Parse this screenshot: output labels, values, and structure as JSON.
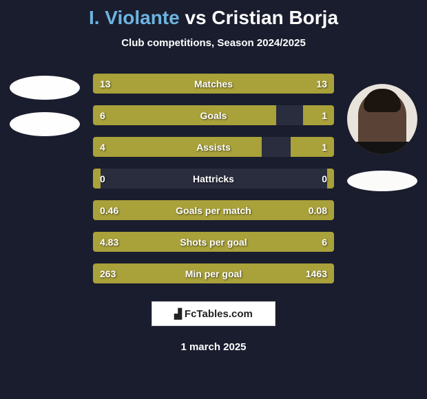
{
  "title": {
    "player1": "I. Violante",
    "vs": "vs",
    "player2": "Cristian Borja",
    "player1_color": "#6db4e0",
    "vs_color": "#ffffff",
    "player2_color": "#ffffff",
    "fontsize": 28
  },
  "subtitle": "Club competitions, Season 2024/2025",
  "background_color": "#1a1d2e",
  "bars": {
    "bar_fill_color": "#a9a13a",
    "bar_empty_color": "#2a2d3e",
    "text_color": "#ffffff",
    "label_fontsize": 14,
    "value_fontsize": 14,
    "rows": [
      {
        "label": "Matches",
        "left_value": "13",
        "right_value": "13",
        "left_width_pct": 50,
        "right_width_pct": 50
      },
      {
        "label": "Goals",
        "left_value": "6",
        "right_value": "1",
        "left_width_pct": 76,
        "right_width_pct": 13
      },
      {
        "label": "Assists",
        "left_value": "4",
        "right_value": "1",
        "left_width_pct": 70,
        "right_width_pct": 18
      },
      {
        "label": "Hattricks",
        "left_value": "0",
        "right_value": "0",
        "left_width_pct": 3,
        "right_width_pct": 3
      },
      {
        "label": "Goals per match",
        "left_value": "0.46",
        "right_value": "0.08",
        "left_width_pct": 100,
        "right_width_pct": 0
      },
      {
        "label": "Shots per goal",
        "left_value": "4.83",
        "right_value": "6",
        "left_width_pct": 100,
        "right_width_pct": 0
      },
      {
        "label": "Min per goal",
        "left_value": "263",
        "right_value": "1463",
        "left_width_pct": 100,
        "right_width_pct": 0
      }
    ]
  },
  "logo": {
    "text": "FcTables.com",
    "icon_glyph": "📊"
  },
  "date": "1 march 2025",
  "avatars": {
    "left": {
      "type": "placeholder",
      "bg": "#fefefe"
    },
    "right": {
      "type": "photo",
      "bg": "#e8e4dc"
    },
    "badge_bg": "#fbfbfa"
  }
}
